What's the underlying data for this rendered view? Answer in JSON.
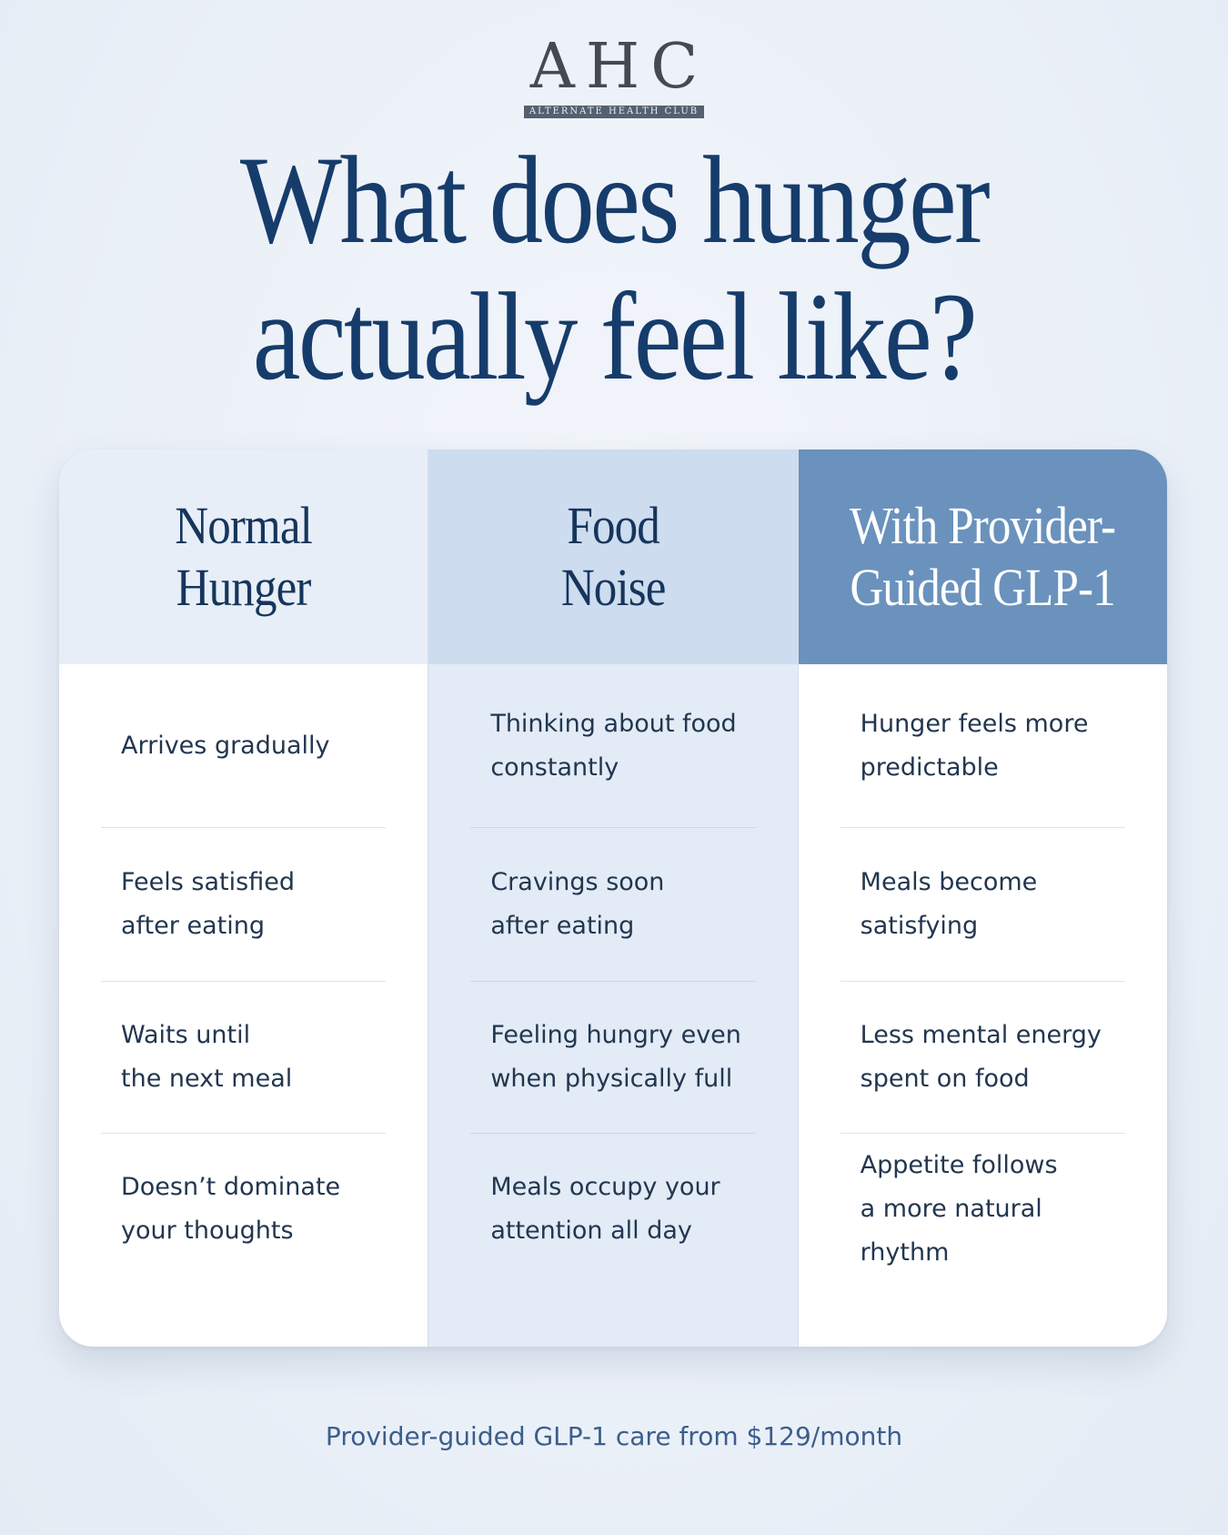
{
  "logo": {
    "letters": "AHC",
    "tagline": "ALTERNATE HEALTH CLUB"
  },
  "title": {
    "line1": "What does hunger",
    "line2": "actually feel like?"
  },
  "columns": [
    {
      "heading_line1": "Normal",
      "heading_line2": "Hunger",
      "rows": [
        {
          "line1": "Arrives gradually",
          "line2": ""
        },
        {
          "line1": "Feels satisfied",
          "line2": "after eating"
        },
        {
          "line1": "Waits until",
          "line2": "the next meal"
        },
        {
          "line1": "Doesn’t dominate",
          "line2": "your thoughts"
        }
      ]
    },
    {
      "heading_line1": "Food",
      "heading_line2": "Noise",
      "rows": [
        {
          "line1": "Thinking about food",
          "line2": "constantly"
        },
        {
          "line1": "Cravings soon",
          "line2": "after eating"
        },
        {
          "line1": "Feeling hungry even",
          "line2": "when physically full"
        },
        {
          "line1": "Meals occupy your",
          "line2": "attention all day"
        }
      ]
    },
    {
      "heading_line1": "With Provider-",
      "heading_line2": "Guided GLP-1",
      "rows": [
        {
          "line1": "Hunger feels more",
          "line2": "predictable"
        },
        {
          "line1": "Meals become",
          "line2": "satisfying"
        },
        {
          "line1": "Less mental energy",
          "line2": "spent on food"
        },
        {
          "line1": "Appetite follows",
          "line2": "a more natural rhythm"
        }
      ]
    }
  ],
  "footer": {
    "text": "Provider-guided GLP-1 care from $129/month"
  },
  "colors": {
    "accent_header": "#6a92bd",
    "title": "#163c6b",
    "footer": "#3b5e8c"
  }
}
